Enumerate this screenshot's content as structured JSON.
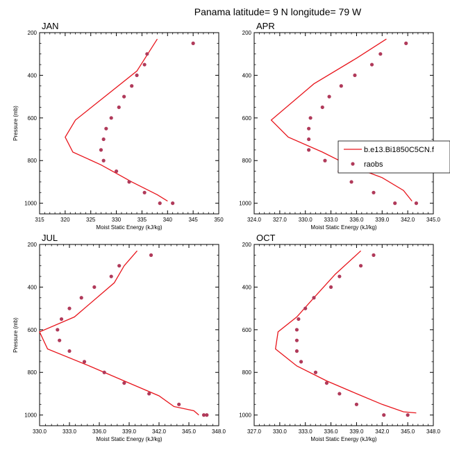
{
  "figure": {
    "title": "Panama  latitude= 9 N longitude= 79 W"
  },
  "colors": {
    "model_line": "#e8141b",
    "obs_marker": "#b03a5a",
    "axes": "#000000"
  },
  "legend": {
    "panel": "APR",
    "entries": [
      {
        "label": "b.e13.Bi1850C5CN.f",
        "kind": "line"
      },
      {
        "label": "raobs",
        "kind": "marker"
      }
    ]
  },
  "chart_data": [
    {
      "type": "line",
      "panel": "JAN",
      "title": "JAN",
      "xlabel": "Moist Static Energy (kJ/kg)",
      "ylabel": "Pressure (mb)",
      "xlim": [
        315,
        350
      ],
      "ylim": [
        1050,
        200
      ],
      "xticks": [
        315,
        320,
        325,
        330,
        335,
        340,
        345,
        350
      ],
      "xtick_labels": [
        "315",
        "320",
        "325",
        "330",
        "335",
        "340",
        "345",
        "350"
      ],
      "yticks": [
        200,
        400,
        600,
        800,
        1000
      ],
      "ytick_labels": [
        "200",
        "400",
        "600",
        "800",
        "1000"
      ],
      "series": [
        {
          "name": "b.e13.Bi1850C5CN.f",
          "x": [
            338.0,
            334.0,
            322.0,
            320.0,
            321.5,
            327.0,
            333.0,
            338.0,
            340.0
          ],
          "y": [
            230,
            380,
            610,
            690,
            760,
            820,
            900,
            960,
            990
          ]
        },
        {
          "name": "raobs",
          "x": [
            345.0,
            336.0,
            335.5,
            334.0,
            333.0,
            331.5,
            330.5,
            329.0,
            328.0,
            327.5,
            327.0,
            327.5,
            330.0,
            332.5,
            335.5,
            338.5,
            341.0
          ],
          "y": [
            250,
            300,
            350,
            400,
            450,
            500,
            550,
            600,
            650,
            700,
            750,
            800,
            850,
            900,
            950,
            1000,
            1000
          ]
        }
      ]
    },
    {
      "type": "line",
      "panel": "APR",
      "title": "APR",
      "xlabel": "Moist Static Energy (kJ/kg)",
      "ylabel": "",
      "xlim": [
        324,
        345
      ],
      "ylim": [
        1050,
        200
      ],
      "xticks": [
        324,
        327,
        330,
        333,
        336,
        339,
        342,
        345
      ],
      "xtick_labels": [
        "324.0",
        "327.0",
        "330.0",
        "333.0",
        "336.0",
        "339.0",
        "342.0",
        "345.0"
      ],
      "yticks": [
        200,
        400,
        600,
        800,
        1000
      ],
      "ytick_labels": [
        "200",
        "400",
        "600",
        "800",
        "1000"
      ],
      "series": [
        {
          "name": "b.e13.Bi1850C5CN.f",
          "x": [
            339.5,
            336.0,
            331.0,
            326.0,
            328.0,
            332.0,
            335.0,
            339.0,
            341.5,
            342.5
          ],
          "y": [
            230,
            320,
            440,
            610,
            690,
            760,
            820,
            880,
            940,
            990
          ]
        },
        {
          "name": "raobs",
          "x": [
            341.8,
            338.8,
            337.8,
            335.8,
            334.2,
            332.8,
            332.0,
            330.6,
            330.4,
            330.4,
            330.4,
            332.3,
            334.0,
            335.4,
            338.0,
            340.5,
            343.0
          ],
          "y": [
            250,
            300,
            350,
            400,
            450,
            500,
            550,
            600,
            650,
            700,
            750,
            800,
            850,
            900,
            950,
            1000,
            1000
          ]
        }
      ]
    },
    {
      "type": "line",
      "panel": "JUL",
      "title": "JUL",
      "xlabel": "Moist Static Energy (kJ/kg)",
      "ylabel": "Pressure (mb)",
      "xlim": [
        330,
        348
      ],
      "ylim": [
        1050,
        200
      ],
      "xticks": [
        330,
        333,
        336,
        339,
        342,
        345,
        348
      ],
      "xtick_labels": [
        "330.0",
        "333.0",
        "336.0",
        "339.0",
        "342.0",
        "345.0",
        "348.0"
      ],
      "series": [
        {
          "name": "b.e13.Bi1850C5CN.f",
          "x": [
            339.8,
            338.5,
            337.5,
            333.5,
            330.0,
            330.8,
            335.0,
            339.0,
            342.0,
            343.5,
            345.5,
            346.0
          ],
          "y": [
            230,
            300,
            380,
            540,
            610,
            690,
            770,
            850,
            910,
            960,
            980,
            1000
          ]
        },
        {
          "name": "raobs",
          "x": [
            341.2,
            338.0,
            337.2,
            335.5,
            334.2,
            333.0,
            332.2,
            331.8,
            332.0,
            333.0,
            334.5,
            336.5,
            338.5,
            341.0,
            344.0,
            346.5,
            346.8
          ],
          "y": [
            250,
            300,
            350,
            400,
            450,
            500,
            550,
            600,
            650,
            700,
            750,
            800,
            850,
            900,
            950,
            1000,
            1000
          ]
        }
      ],
      "yticks": [
        200,
        400,
        600,
        800,
        1000
      ],
      "ytick_labels": [
        "200",
        "400",
        "600",
        "800",
        "1000"
      ]
    },
    {
      "type": "line",
      "panel": "OCT",
      "title": "OCT",
      "xlabel": "Moist Static Energy (kJ/kg)",
      "ylabel": "",
      "xlim": [
        327,
        348
      ],
      "ylim": [
        1050,
        200
      ],
      "xticks": [
        327,
        330,
        333,
        336,
        339,
        342,
        345,
        348
      ],
      "xtick_labels": [
        "327.0",
        "330.0",
        "333.0",
        "336.0",
        "339.0",
        "342.0",
        "345.0",
        "348.0"
      ],
      "yticks": [
        200,
        400,
        600,
        800,
        1000
      ],
      "ytick_labels": [
        "200",
        "400",
        "600",
        "800",
        "1000"
      ],
      "series": [
        {
          "name": "b.e13.Bi1850C5CN.f",
          "x": [
            339.5,
            336.5,
            334.0,
            332.0,
            329.8,
            329.5,
            332.0,
            335.5,
            339.0,
            342.0,
            344.5,
            346.0
          ],
          "y": [
            230,
            340,
            450,
            540,
            610,
            690,
            770,
            840,
            900,
            950,
            985,
            990
          ]
        },
        {
          "name": "raobs",
          "x": [
            341.0,
            339.5,
            337.0,
            336.0,
            334.0,
            333.0,
            332.2,
            332.0,
            332.0,
            332.0,
            332.5,
            334.2,
            335.5,
            337.0,
            339.0,
            342.2,
            345.0
          ],
          "y": [
            250,
            300,
            350,
            400,
            450,
            500,
            550,
            600,
            650,
            700,
            750,
            800,
            850,
            900,
            950,
            1000,
            1000
          ]
        }
      ]
    }
  ]
}
